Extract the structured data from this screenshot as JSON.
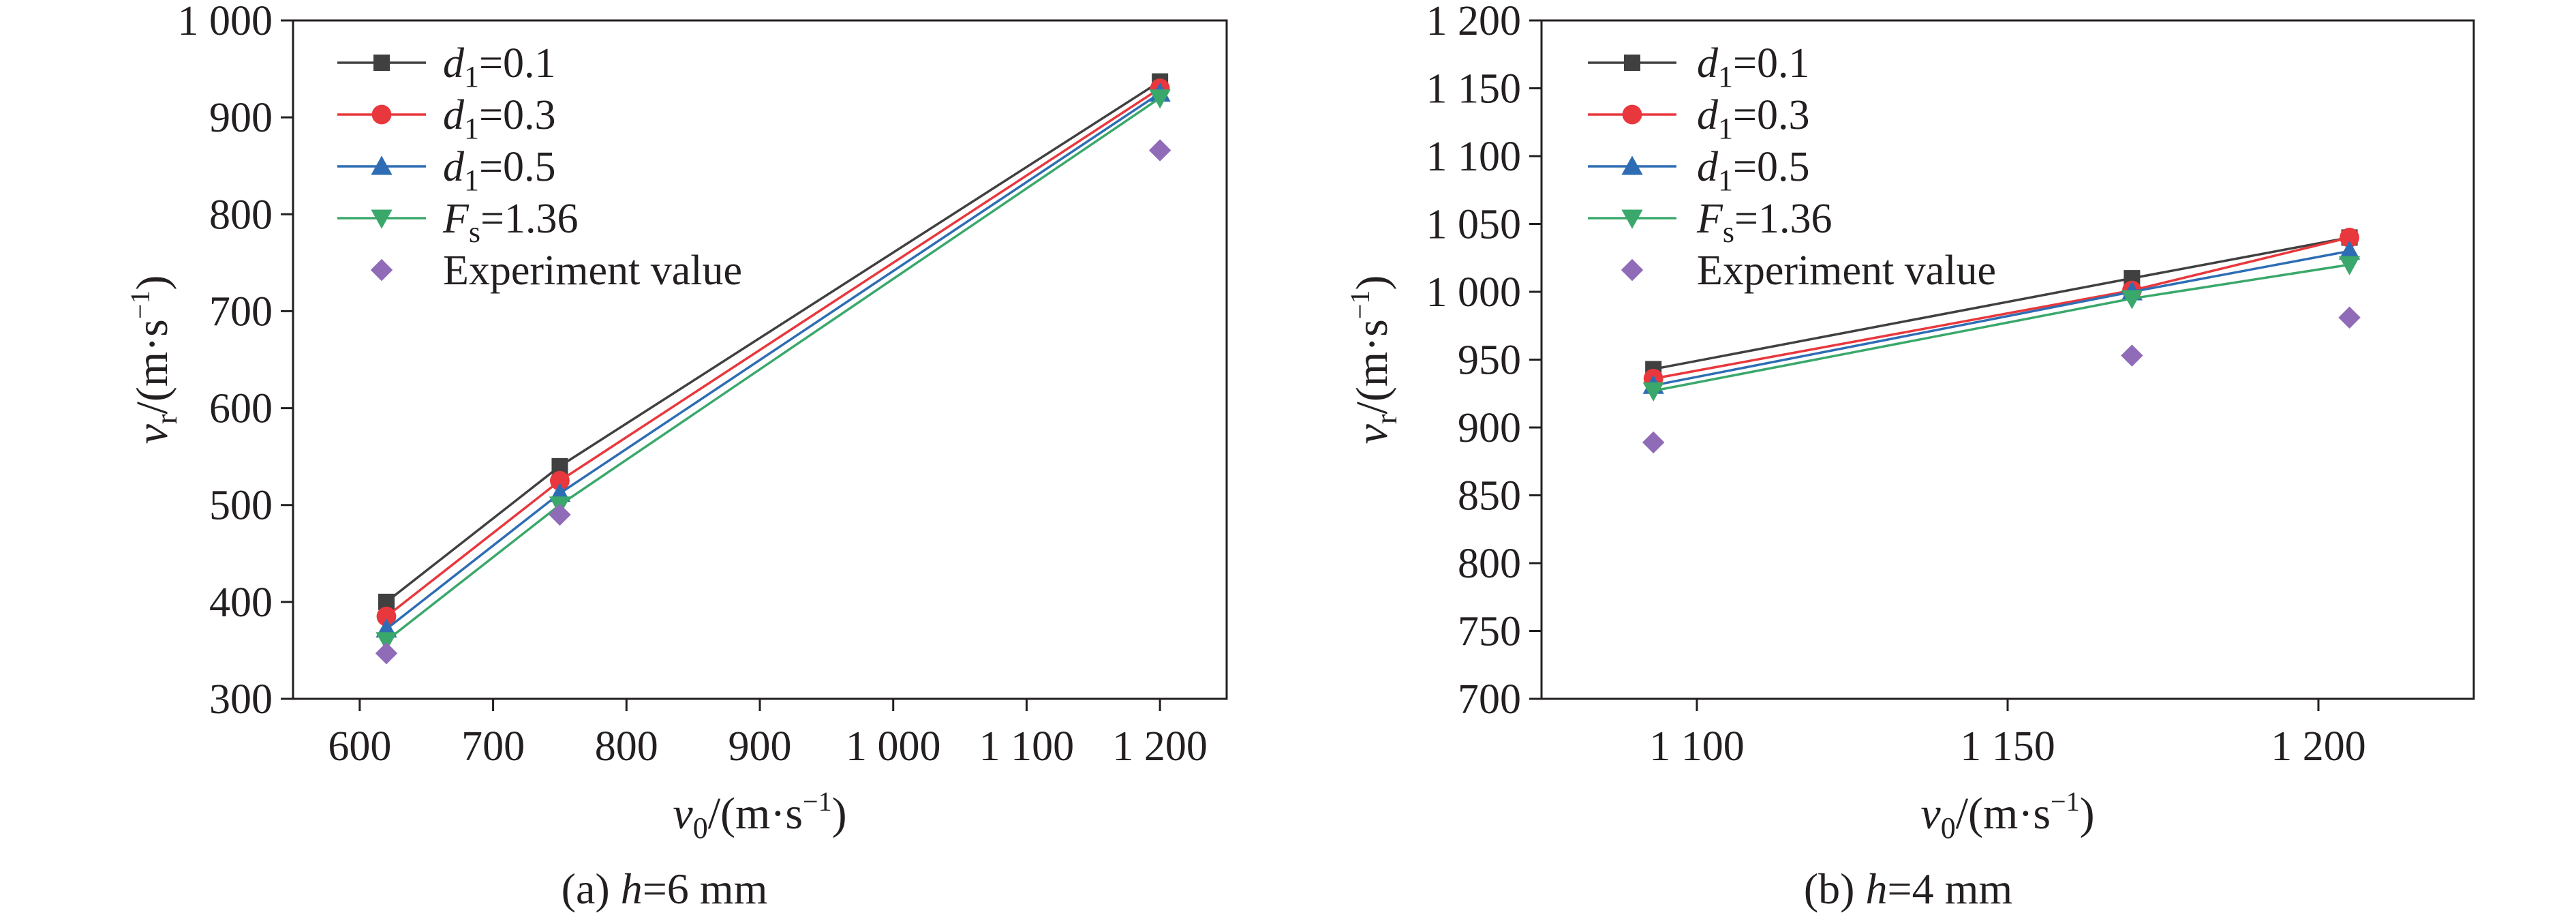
{
  "chart_data": [
    {
      "type": "line",
      "caption": {
        "prefix": "(a) ",
        "var": "h",
        "suffix": "=6 mm"
      },
      "xlabel": {
        "var": "v",
        "sub": "0",
        "unit_pre": "/(m·s",
        "sup": "−1",
        "unit_post": ")"
      },
      "ylabel": {
        "var": "v",
        "sub": "r",
        "unit_pre": "/(m·s",
        "sup": "−1",
        "unit_post": ")"
      },
      "xlim": [
        550,
        1250
      ],
      "ylim": [
        300,
        1000
      ],
      "xticks": [
        600,
        700,
        800,
        900,
        1000,
        1100,
        1200
      ],
      "xtick_labels": [
        "600",
        "700",
        "800",
        "900",
        "1 000",
        "1 100",
        "1 200"
      ],
      "yticks": [
        300,
        400,
        500,
        600,
        700,
        800,
        900,
        1000
      ],
      "ytick_labels": [
        "300",
        "400",
        "500",
        "600",
        "700",
        "800",
        "900",
        "1 000"
      ],
      "x": [
        620,
        750,
        1200
      ],
      "series": [
        {
          "name": "d1=0.1",
          "label_var": "d",
          "label_sub": "1",
          "label_rest": "=0.1",
          "color": "#404040",
          "marker": "square",
          "values": [
            400,
            540,
            937
          ]
        },
        {
          "name": "d1=0.3",
          "label_var": "d",
          "label_sub": "1",
          "label_rest": "=0.3",
          "color": "#e8383d",
          "marker": "circle",
          "values": [
            385,
            525,
            930
          ]
        },
        {
          "name": "d1=0.5",
          "label_var": "d",
          "label_sub": "1",
          "label_rest": "=0.5",
          "color": "#2e6db4",
          "marker": "triangle-up",
          "values": [
            372,
            512,
            925
          ]
        },
        {
          "name": "Fs=1.36",
          "label_var": "F",
          "label_sub": "s",
          "label_rest": "=1.36",
          "color": "#3aa86b",
          "marker": "triangle-down",
          "values": [
            360,
            500,
            920
          ]
        },
        {
          "name": "Experiment value",
          "label_var": "",
          "label_sub": "",
          "label_rest": "Experiment value",
          "color": "#8f6bb8",
          "marker": "diamond",
          "scatter": true,
          "values": [
            347,
            490,
            866
          ]
        }
      ],
      "grid": false,
      "legend": "top-left"
    },
    {
      "type": "line",
      "caption": {
        "prefix": "(b) ",
        "var": "h",
        "suffix": "=4 mm"
      },
      "xlabel": {
        "var": "v",
        "sub": "0",
        "unit_pre": "/(m·s",
        "sup": "−1",
        "unit_post": ")"
      },
      "ylabel": {
        "var": "v",
        "sub": "r",
        "unit_pre": "/(m·s",
        "sup": "−1",
        "unit_post": ")"
      },
      "xlim": [
        1075,
        1225
      ],
      "ylim": [
        700,
        1200
      ],
      "xticks": [
        1100,
        1150,
        1200
      ],
      "xtick_labels": [
        "1 100",
        "1 150",
        "1 200"
      ],
      "yticks": [
        700,
        750,
        800,
        850,
        900,
        950,
        1000,
        1050,
        1100,
        1150,
        1200
      ],
      "ytick_labels": [
        "700",
        "750",
        "800",
        "850",
        "900",
        "950",
        "1 000",
        "1 050",
        "1 100",
        "1 150",
        "1 200"
      ],
      "x": [
        1093,
        1170,
        1205
      ],
      "series": [
        {
          "name": "d1=0.1",
          "label_var": "d",
          "label_sub": "1",
          "label_rest": "=0.1",
          "color": "#404040",
          "marker": "square",
          "values": [
            943,
            1010,
            1040
          ]
        },
        {
          "name": "d1=0.3",
          "label_var": "d",
          "label_sub": "1",
          "label_rest": "=0.3",
          "color": "#e8383d",
          "marker": "circle",
          "values": [
            936,
            1001,
            1040
          ]
        },
        {
          "name": "d1=0.5",
          "label_var": "d",
          "label_sub": "1",
          "label_rest": "=0.5",
          "color": "#2e6db4",
          "marker": "triangle-up",
          "values": [
            931,
            1000,
            1030
          ]
        },
        {
          "name": "Fs=1.36",
          "label_var": "F",
          "label_sub": "s",
          "label_rest": "=1.36",
          "color": "#3aa86b",
          "marker": "triangle-down",
          "values": [
            927,
            995,
            1020
          ]
        },
        {
          "name": "Experiment value",
          "label_var": "",
          "label_sub": "",
          "label_rest": "Experiment value",
          "color": "#8f6bb8",
          "marker": "diamond",
          "scatter": true,
          "values": [
            889,
            953,
            981
          ]
        }
      ],
      "grid": false,
      "legend": "top-left"
    }
  ]
}
